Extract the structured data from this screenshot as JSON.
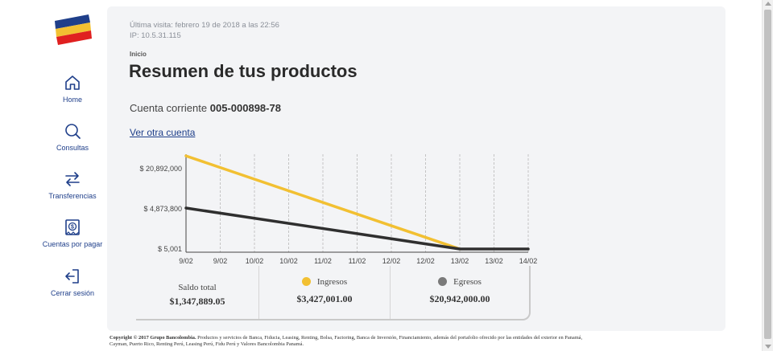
{
  "sidebar": {
    "items": [
      {
        "label": "Home",
        "icon": "home-icon"
      },
      {
        "label": "Consultas",
        "icon": "search-icon"
      },
      {
        "label": "Transferencias",
        "icon": "transfer-arrows-icon"
      },
      {
        "label": "Cuentas por pagar",
        "icon": "bill-dollar-icon"
      },
      {
        "label": "Cerrar sesión",
        "icon": "logout-icon"
      }
    ]
  },
  "header": {
    "last_visit": "Última visita: febrero 19 de 2018 a las 22:56",
    "ip": "IP: 10.5.31.115",
    "breadcrumb": "Inicio",
    "title": "Resumen de tus productos"
  },
  "account": {
    "label": "Cuenta corriente",
    "number": "005-000898-78",
    "other_link": "Ver otra cuenta"
  },
  "chart_data": {
    "type": "line",
    "categories": [
      "9/02",
      "9/02",
      "10/02",
      "10/02",
      "11/02",
      "11/02",
      "12/02",
      "12/02",
      "13/02",
      "13/02",
      "14/02"
    ],
    "y_ticks": [
      "$ 20,892,000",
      "$ 4,873,800",
      "$ 5,001"
    ],
    "series": [
      {
        "name": "Ingresos",
        "color": "#f2c032",
        "values": [
          26000000,
          null,
          null,
          null,
          null,
          null,
          null,
          null,
          5001,
          null,
          null
        ]
      },
      {
        "name": "Egresos",
        "color": "#2f2f2f",
        "values": [
          5200000,
          null,
          null,
          null,
          null,
          null,
          null,
          null,
          5001,
          5001,
          5001
        ]
      }
    ],
    "grid": "vertical-dashed"
  },
  "summary": {
    "balance_label": "Saldo total",
    "balance_value": "$1,347,889.05",
    "income_label": "Ingresos",
    "income_value": "$3,427,001.00",
    "income_color": "#f2c032",
    "expense_label": "Egresos",
    "expense_value": "$20,942,000.00",
    "expense_color": "#7a7a7a"
  },
  "footer": {
    "copyright": "Copyright © 2017 Grupo Bancolombia.",
    "text": " Productos y servicios de Banca, Fiducia, Leasing, Renting, Bolsa, Factoring, Banca de Inversión, Financiamiento, además del portafolio ofrecido por las entidades del exterior en Panamá, Cayman, Puerto Rico, Renting Perú, Leasing Perú, Fidu Perú y Valores Bancolombia Panamá."
  }
}
